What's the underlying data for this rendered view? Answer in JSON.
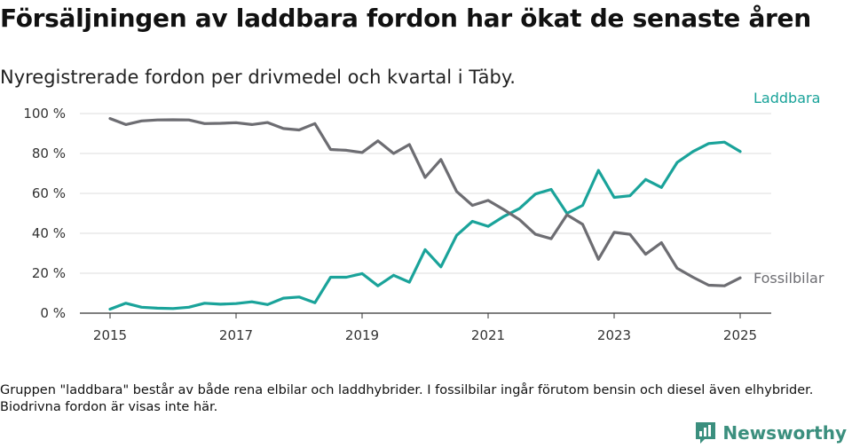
{
  "title": "Försäljningen av laddbara fordon har ökat de senaste åren",
  "subtitle": "Nyregistrerade fordon per drivmedel och kvartal i Täby.",
  "footnote": "Gruppen \"laddbara\" består av både rena elbilar och laddhybrider. I fossilbilar ingår förutom bensin och diesel även elhybrider. Biodrivna fordon är visas inte här.",
  "brand": {
    "name": "Newsworthy",
    "logo_icon": "bar-chart-logo-icon",
    "color": "#3b8f7e"
  },
  "chart_data": {
    "type": "line",
    "x_ticks": [
      "2015",
      "2017",
      "2019",
      "2021",
      "2023",
      "2025"
    ],
    "y_ticks": [
      "0 %",
      "20 %",
      "40 %",
      "60 %",
      "80 %",
      "100 %"
    ],
    "xlim": [
      2015,
      2025
    ],
    "ylim": [
      0,
      100
    ],
    "grid": "horizontal",
    "legend": "inline-right",
    "x": [
      2015.0,
      2015.25,
      2015.5,
      2015.75,
      2016.0,
      2016.25,
      2016.5,
      2016.75,
      2017.0,
      2017.25,
      2017.5,
      2017.75,
      2018.0,
      2018.25,
      2018.5,
      2018.75,
      2019.0,
      2019.25,
      2019.5,
      2019.75,
      2020.0,
      2020.25,
      2020.5,
      2020.75,
      2021.0,
      2021.25,
      2021.5,
      2021.75,
      2022.0,
      2022.25,
      2022.5,
      2022.75,
      2023.0,
      2023.25,
      2023.5,
      2023.75,
      2024.0,
      2024.25,
      2024.5,
      2024.75,
      2025.0
    ],
    "series": [
      {
        "name": "Laddbara",
        "color": "#1aa39a",
        "values": [
          2,
          5,
          3,
          2.5,
          2.3,
          3,
          5,
          4.5,
          4.8,
          5.7,
          4.3,
          7.5,
          8.1,
          5.2,
          18,
          18,
          19.8,
          13.7,
          19,
          15.5,
          31.8,
          23.2,
          39,
          46,
          43.5,
          48.5,
          52.5,
          59.7,
          62,
          50,
          54,
          71.5,
          58,
          58.8,
          67,
          63,
          75.5,
          81,
          85,
          85.7,
          81
        ]
      },
      {
        "name": "Fossilbilar",
        "color": "#6d6d72",
        "values": [
          97.5,
          94.5,
          96.3,
          96.8,
          96.9,
          96.8,
          95,
          95.1,
          95.4,
          94.5,
          95.5,
          92.5,
          91.8,
          95,
          82,
          81.6,
          80.5,
          86.3,
          80,
          84.5,
          68,
          77,
          61,
          54,
          56.5,
          51.8,
          46.8,
          39.5,
          37.3,
          49.3,
          44.5,
          27,
          40.5,
          39.5,
          29.5,
          35.3,
          22.5,
          18,
          14,
          13.7,
          17.7
        ]
      }
    ]
  }
}
